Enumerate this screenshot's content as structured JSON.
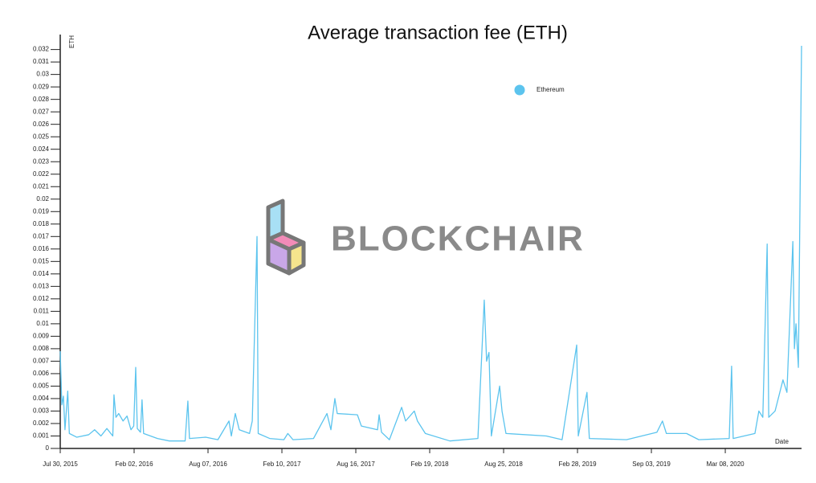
{
  "chart_data": {
    "type": "line",
    "title": "Average transaction fee (ETH)",
    "y_label": "ETH",
    "x_label": "Date",
    "watermark": "BLOCKCHAIR",
    "legend": "top-right",
    "grid": false,
    "xlim": [
      "2015-07-30",
      "2020-09-17"
    ],
    "ylim": [
      0,
      0.0332
    ],
    "xticks": [
      {
        "value": "2015-07-30",
        "label": "Jul 30, 2015"
      },
      {
        "value": "2016-02-02",
        "label": "Feb 02, 2016"
      },
      {
        "value": "2016-08-07",
        "label": "Aug 07, 2016"
      },
      {
        "value": "2017-02-10",
        "label": "Feb 10, 2017"
      },
      {
        "value": "2017-08-16",
        "label": "Aug 16, 2017"
      },
      {
        "value": "2018-02-19",
        "label": "Feb 19, 2018"
      },
      {
        "value": "2018-08-25",
        "label": "Aug 25, 2018"
      },
      {
        "value": "2019-02-28",
        "label": "Feb 28, 2019"
      },
      {
        "value": "2019-09-03",
        "label": "Sep 03, 2019"
      },
      {
        "value": "2020-03-08",
        "label": "Mar 08, 2020"
      }
    ],
    "yticks": [
      0,
      0.001,
      0.002,
      0.003,
      0.004,
      0.005,
      0.006,
      0.007,
      0.008,
      0.009,
      0.01,
      0.011,
      0.012,
      0.013,
      0.014,
      0.015,
      0.016,
      0.017,
      0.018,
      0.019,
      0.02,
      0.021,
      0.022,
      0.023,
      0.024,
      0.025,
      0.026,
      0.027,
      0.028,
      0.029,
      0.03,
      0.031,
      0.032
    ],
    "x": [
      "2015-07-30",
      "2015-08-03",
      "2015-08-07",
      "2015-08-11",
      "2015-08-18",
      "2015-08-22",
      "2015-09-10",
      "2015-10-10",
      "2015-10-25",
      "2015-11-10",
      "2015-11-25",
      "2015-12-10",
      "2015-12-13",
      "2015-12-18",
      "2015-12-25",
      "2016-01-05",
      "2016-01-15",
      "2016-01-25",
      "2016-02-01",
      "2016-02-06",
      "2016-02-10",
      "2016-02-18",
      "2016-02-22",
      "2016-02-26",
      "2016-04-01",
      "2016-05-01",
      "2016-06-10",
      "2016-06-17",
      "2016-06-21",
      "2016-08-01",
      "2016-09-01",
      "2016-09-29",
      "2016-10-05",
      "2016-10-15",
      "2016-10-25",
      "2016-11-20",
      "2016-11-27",
      "2016-12-09",
      "2016-12-12",
      "2017-01-10",
      "2017-02-15",
      "2017-02-25",
      "2017-03-10",
      "2017-05-01",
      "2017-06-04",
      "2017-06-14",
      "2017-06-24",
      "2017-06-30",
      "2017-08-20",
      "2017-08-30",
      "2017-10-10",
      "2017-10-14",
      "2017-10-20",
      "2017-11-09",
      "2017-12-10",
      "2017-12-20",
      "2018-01-11",
      "2018-01-19",
      "2018-02-08",
      "2018-04-11",
      "2018-06-21",
      "2018-07-07",
      "2018-07-13",
      "2018-07-19",
      "2018-07-25",
      "2018-08-15",
      "2018-08-21",
      "2018-08-31",
      "2018-12-11",
      "2019-01-20",
      "2019-02-26",
      "2019-03-02",
      "2019-03-24",
      "2019-03-30",
      "2019-07-02",
      "2019-09-17",
      "2019-10-01",
      "2019-10-11",
      "2019-12-01",
      "2020-01-01",
      "2020-03-18",
      "2020-03-24",
      "2020-03-28",
      "2020-05-22",
      "2020-06-01",
      "2020-06-11",
      "2020-06-22",
      "2020-06-26",
      "2020-07-12",
      "2020-08-01",
      "2020-08-11",
      "2020-08-26",
      "2020-08-30",
      "2020-09-03",
      "2020-09-09",
      "2020-09-17"
    ],
    "series": [
      {
        "name": "Ethereum",
        "color": "#5cc4ee",
        "values": [
          0.0078,
          0.0035,
          0.0042,
          0.0015,
          0.0046,
          0.0012,
          0.0009,
          0.0011,
          0.0015,
          0.001,
          0.0016,
          0.001,
          0.0043,
          0.0025,
          0.0028,
          0.0022,
          0.0026,
          0.0015,
          0.0018,
          0.0065,
          0.0016,
          0.0013,
          0.0039,
          0.0012,
          0.0008,
          0.0006,
          0.0006,
          0.0038,
          0.0008,
          0.0009,
          0.0007,
          0.0022,
          0.001,
          0.0028,
          0.0015,
          0.0012,
          0.0022,
          0.017,
          0.0012,
          0.0008,
          0.0007,
          0.0012,
          0.0007,
          0.0008,
          0.0028,
          0.0015,
          0.004,
          0.0028,
          0.0027,
          0.0018,
          0.0015,
          0.0027,
          0.0013,
          0.0007,
          0.0033,
          0.0022,
          0.003,
          0.0022,
          0.0012,
          0.0006,
          0.0008,
          0.0119,
          0.007,
          0.0077,
          0.001,
          0.005,
          0.003,
          0.0012,
          0.001,
          0.0007,
          0.0083,
          0.001,
          0.0045,
          0.0008,
          0.0007,
          0.0013,
          0.0022,
          0.0012,
          0.0012,
          0.0007,
          0.0008,
          0.0066,
          0.0008,
          0.0012,
          0.003,
          0.0025,
          0.0164,
          0.0025,
          0.003,
          0.0055,
          0.0045,
          0.0166,
          0.008,
          0.01,
          0.0065,
          0.0323
        ]
      }
    ]
  }
}
